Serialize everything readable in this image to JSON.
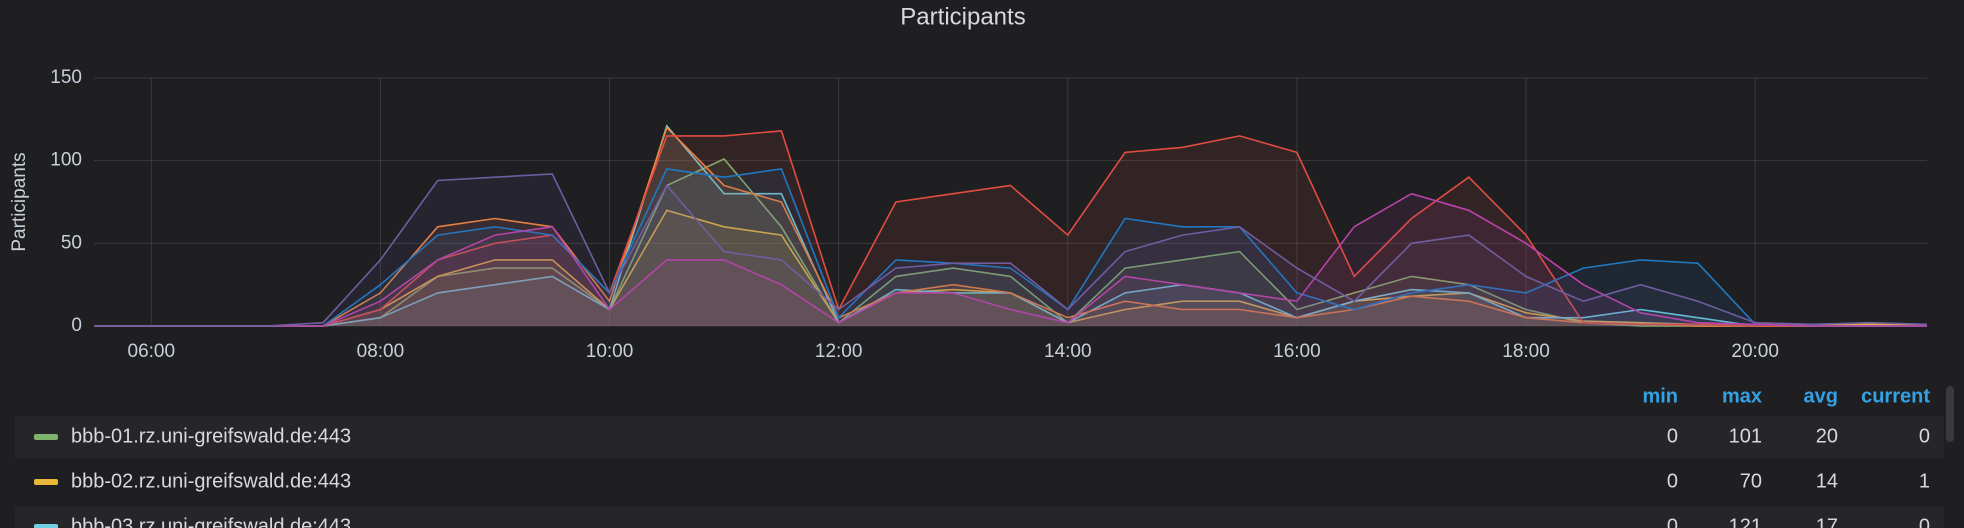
{
  "chart_data": {
    "type": "line",
    "title": "Participants",
    "y_label": "Participants",
    "x": [
      5.5,
      6,
      6.5,
      7,
      7.5,
      8,
      8.5,
      9,
      9.5,
      10,
      10.5,
      11,
      11.5,
      12,
      12.5,
      13,
      13.5,
      14,
      14.5,
      15,
      15.5,
      16,
      16.5,
      17,
      17.5,
      18,
      18.5,
      19,
      19.5,
      20,
      20.5,
      21,
      21.5
    ],
    "xlim": [
      5.5,
      21.5
    ],
    "xticks": [
      {
        "value": 6,
        "label": "06:00"
      },
      {
        "value": 8,
        "label": "08:00"
      },
      {
        "value": 10,
        "label": "10:00"
      },
      {
        "value": 12,
        "label": "12:00"
      },
      {
        "value": 14,
        "label": "14:00"
      },
      {
        "value": 16,
        "label": "16:00"
      },
      {
        "value": 18,
        "label": "18:00"
      },
      {
        "value": 20,
        "label": "20:00"
      }
    ],
    "ylim": [
      0,
      150
    ],
    "yticks": [
      0,
      50,
      100,
      150
    ],
    "grid": true,
    "series": [
      {
        "name": "bbb-01.rz.uni-greifswald.de:443",
        "color": "#7eb26d",
        "values": [
          0,
          0,
          0,
          0,
          0,
          5,
          30,
          35,
          35,
          10,
          85,
          101,
          60,
          2,
          30,
          35,
          30,
          2,
          35,
          40,
          45,
          10,
          20,
          30,
          25,
          10,
          2,
          0,
          0,
          0,
          0,
          0,
          0
        ]
      },
      {
        "name": "bbb-02.rz.uni-greifswald.de:443",
        "color": "#eab839",
        "values": [
          0,
          0,
          0,
          0,
          0,
          10,
          30,
          40,
          40,
          10,
          70,
          60,
          55,
          2,
          20,
          22,
          20,
          2,
          10,
          15,
          15,
          5,
          15,
          18,
          20,
          8,
          3,
          2,
          1,
          1,
          1,
          1,
          1
        ]
      },
      {
        "name": "bbb-03.rz.uni-greifswald.de:443",
        "color": "#6ed0e0",
        "values": [
          0,
          0,
          0,
          0,
          0,
          5,
          20,
          25,
          30,
          10,
          121,
          80,
          80,
          2,
          22,
          20,
          20,
          2,
          20,
          25,
          20,
          5,
          15,
          22,
          20,
          5,
          5,
          10,
          5,
          0,
          0,
          0,
          0
        ]
      },
      {
        "color": "#ef843c",
        "values": [
          0,
          0,
          0,
          0,
          0,
          20,
          60,
          65,
          60,
          15,
          120,
          85,
          75,
          5,
          20,
          25,
          20,
          5,
          15,
          10,
          10,
          5,
          10,
          18,
          15,
          5,
          2,
          1,
          0,
          0,
          0,
          0,
          0
        ]
      },
      {
        "color": "#e24d42",
        "values": [
          0,
          0,
          0,
          0,
          0,
          10,
          40,
          50,
          55,
          20,
          115,
          115,
          118,
          10,
          75,
          80,
          85,
          55,
          105,
          108,
          115,
          105,
          30,
          65,
          90,
          55,
          2,
          1,
          1,
          0,
          0,
          0,
          0
        ]
      },
      {
        "color": "#1f78c1",
        "values": [
          0,
          0,
          0,
          0,
          0,
          25,
          55,
          60,
          55,
          20,
          95,
          90,
          95,
          5,
          40,
          38,
          35,
          10,
          65,
          60,
          60,
          20,
          10,
          20,
          25,
          20,
          35,
          40,
          38,
          1,
          0,
          0,
          0
        ]
      },
      {
        "color": "#ba43a9",
        "values": [
          0,
          0,
          0,
          0,
          0,
          15,
          40,
          55,
          60,
          10,
          40,
          40,
          25,
          2,
          20,
          20,
          10,
          2,
          30,
          25,
          20,
          15,
          60,
          80,
          70,
          50,
          25,
          8,
          2,
          1,
          0,
          0,
          0
        ]
      },
      {
        "color": "#705da0",
        "values": [
          0,
          0,
          0,
          0,
          2,
          40,
          88,
          90,
          92,
          20,
          85,
          45,
          40,
          10,
          35,
          38,
          38,
          10,
          45,
          55,
          60,
          35,
          15,
          50,
          55,
          30,
          15,
          25,
          15,
          2,
          1,
          2,
          1
        ]
      }
    ]
  },
  "legend_table": {
    "headers": [
      "min",
      "max",
      "avg",
      "current"
    ],
    "rows": [
      [
        0,
        101,
        20,
        0
      ],
      [
        0,
        70,
        14,
        1
      ],
      [
        0,
        121,
        17,
        0
      ]
    ]
  }
}
